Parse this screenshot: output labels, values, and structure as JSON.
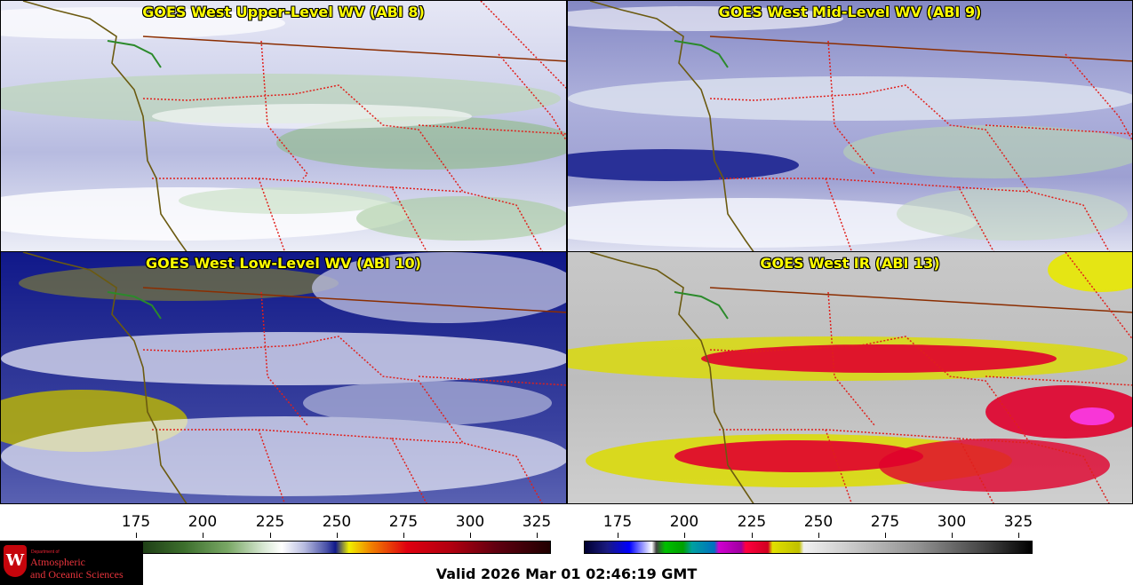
{
  "panels": [
    {
      "title": "GOES West Upper-Level WV (ABI 8)",
      "base": "#d6d8ee"
    },
    {
      "title": "GOES West Mid-Level WV (ABI 9)",
      "base": "#a8abd6"
    },
    {
      "title": "GOES West Low-Level WV (ABI 10)",
      "base": "#1a2486"
    },
    {
      "title": "GOES West IR (ABI 13)",
      "base": "#b4b4b4"
    }
  ],
  "colorbars": {
    "wv": {
      "ticks": [
        "175",
        "200",
        "225",
        "250",
        "275",
        "300",
        "325"
      ]
    },
    "ir": {
      "ticks": [
        "175",
        "200",
        "225",
        "250",
        "275",
        "300",
        "325"
      ]
    }
  },
  "logo": {
    "department": "Department of",
    "line1": "Atmospheric",
    "line2": "and Oceanic Sciences",
    "crest": "W"
  },
  "valid_time": "Valid 2026 Mar 01 02:46:19 GMT",
  "colors": {
    "title_text": "#ffff00",
    "state_borders": "#e0201c",
    "coastline": "#6b5a10",
    "intl_border": "#8b2d00"
  }
}
